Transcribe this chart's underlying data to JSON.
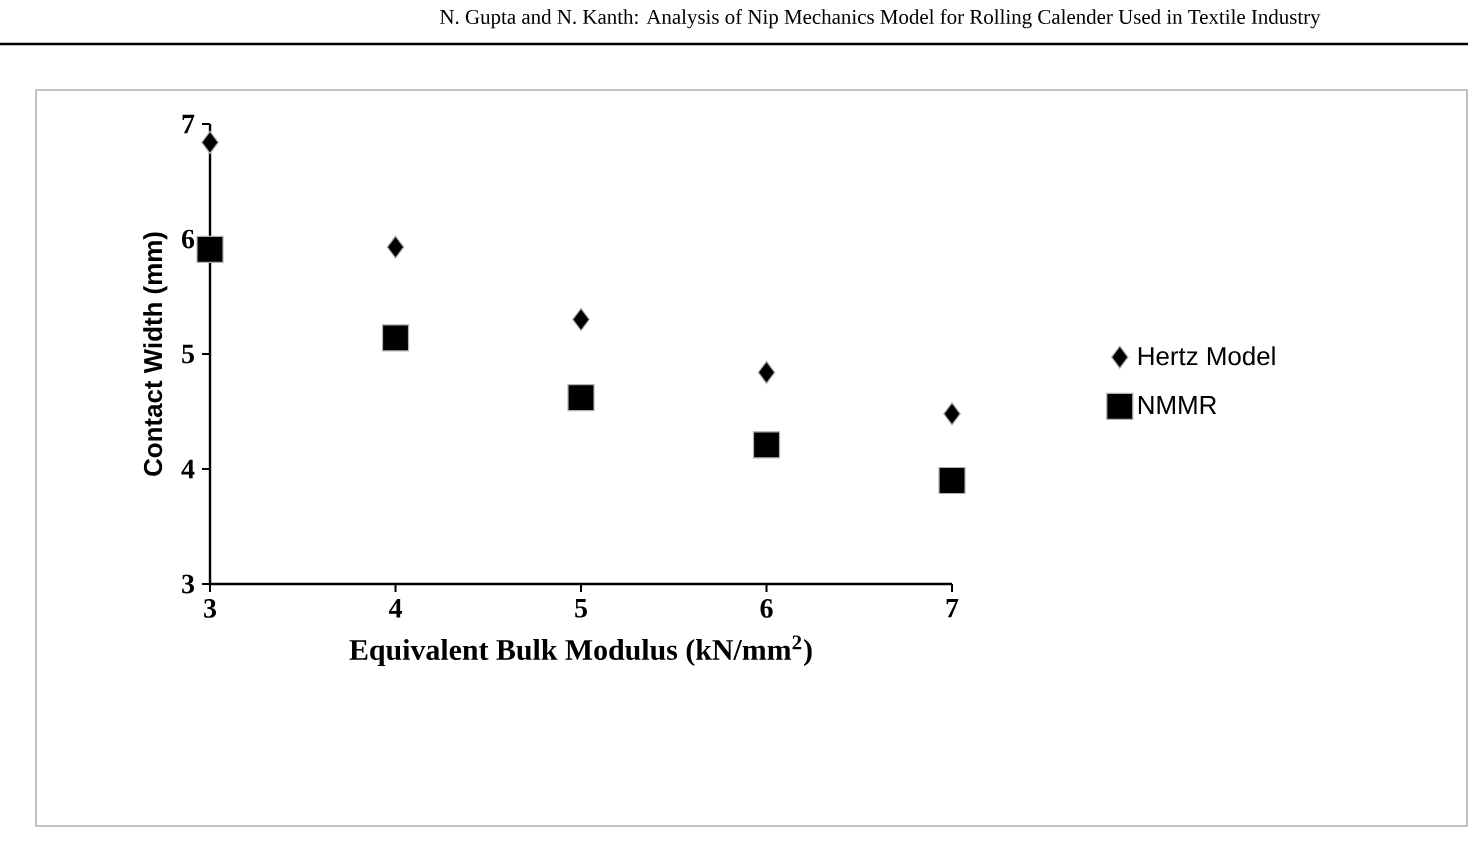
{
  "chart_data": {
    "type": "scatter",
    "xlabel": "Equivalent Bulk Modulus (kN/mm$^{2}$)",
    "ylabel": "Contact Width (mm)",
    "annotations": [
      "N. Gupta and N. Kanth: Analysis of Nip Mechanics Model for Rolling Calender Used in Textile Industry"
    ],
    "x": [
      3,
      4,
      5,
      6,
      7
    ],
    "series": [
      {
        "name": "Hertz Model",
        "color": "#000000",
        "marker": "diamond",
        "values": [
          6.84,
          5.93,
          5.3,
          4.84,
          4.48
        ]
      },
      {
        "name": "NMMR",
        "color": "#000000",
        "marker": "square",
        "values": [
          5.91,
          5.14,
          4.62,
          4.21,
          3.9
        ]
      }
    ],
    "xlim": [
      3,
      7
    ],
    "ylim": [
      3,
      7
    ],
    "xticks": [
      3,
      4,
      5,
      6,
      7
    ],
    "yticks": [
      3,
      4,
      5,
      6,
      7
    ],
    "grid": false,
    "legend": "right"
  }
}
